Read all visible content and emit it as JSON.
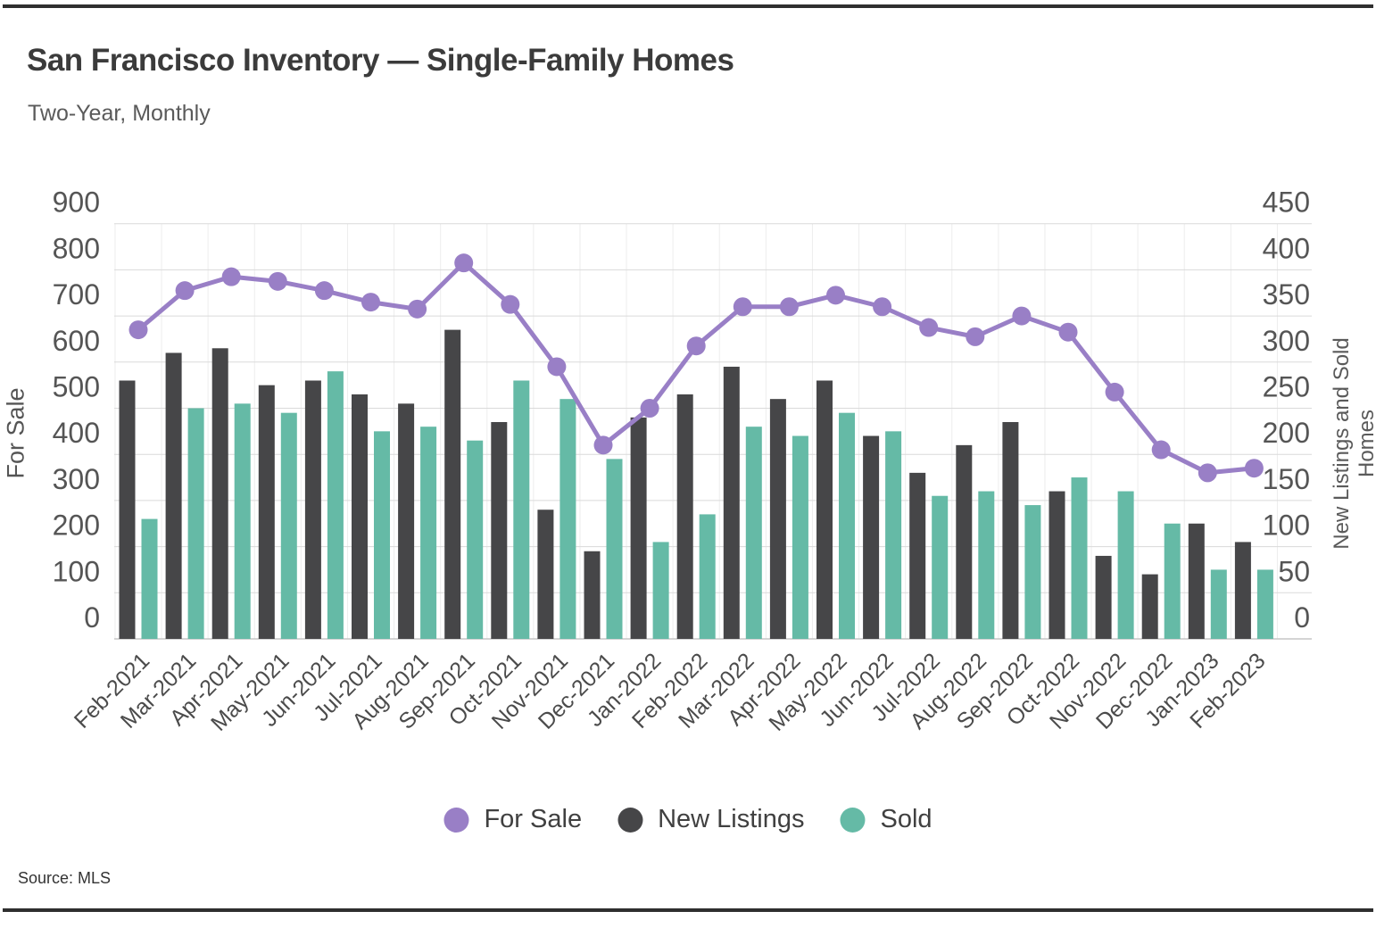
{
  "page": {
    "source": "Source: MLS"
  },
  "legend": {
    "items": [
      {
        "label": "For Sale",
        "color": "#997FC6"
      },
      {
        "label": "New Listings",
        "color": "#464648"
      },
      {
        "label": "Sold",
        "color": "#65BAA6"
      }
    ]
  },
  "chart_data": {
    "type": "bar+line combo",
    "title": "San Francisco Inventory — Single-Family Homes",
    "subtitle": "Two-Year, Monthly",
    "categories": [
      "Feb-2021",
      "Mar-2021",
      "Apr-2021",
      "May-2021",
      "Jun-2021",
      "Jul-2021",
      "Aug-2021",
      "Sep-2021",
      "Oct-2021",
      "Nov-2021",
      "Dec-2021",
      "Jan-2022",
      "Feb-2022",
      "Mar-2022",
      "Apr-2022",
      "May-2022",
      "Jun-2022",
      "Jul-2022",
      "Aug-2022",
      "Sep-2022",
      "Oct-2022",
      "Nov-2022",
      "Dec-2022",
      "Jan-2023",
      "Feb-2023"
    ],
    "series": [
      {
        "name": "For Sale",
        "type": "line",
        "axis": "left",
        "color": "#997FC6",
        "values": [
          670,
          755,
          785,
          775,
          755,
          730,
          715,
          815,
          725,
          590,
          420,
          500,
          635,
          720,
          720,
          745,
          720,
          675,
          655,
          700,
          665,
          535,
          410,
          360,
          370
        ]
      },
      {
        "name": "New Listings",
        "type": "bar",
        "axis": "right",
        "color": "#464648",
        "values": [
          280,
          310,
          315,
          275,
          280,
          265,
          255,
          335,
          235,
          140,
          95,
          240,
          265,
          295,
          260,
          280,
          220,
          180,
          210,
          235,
          160,
          90,
          70,
          125,
          105
        ]
      },
      {
        "name": "Sold",
        "type": "bar",
        "axis": "right",
        "color": "#65BAA6",
        "values": [
          130,
          250,
          255,
          245,
          290,
          225,
          230,
          215,
          280,
          260,
          195,
          105,
          135,
          230,
          220,
          245,
          225,
          155,
          160,
          145,
          175,
          160,
          125,
          75,
          75
        ]
      }
    ],
    "left_axis": {
      "title": "For Sale",
      "min": 0,
      "max": 900,
      "tick_step": 100,
      "ticks": [
        0,
        100,
        200,
        300,
        400,
        500,
        600,
        700,
        800,
        900
      ]
    },
    "right_axis": {
      "title": "New Listings and Sold Homes",
      "min": 0,
      "max": 450,
      "tick_step": 50,
      "ticks": [
        0,
        50,
        100,
        150,
        200,
        250,
        300,
        350,
        400,
        450
      ]
    },
    "grid": true,
    "legend_position": "bottom",
    "x_label_rotation": -45
  }
}
